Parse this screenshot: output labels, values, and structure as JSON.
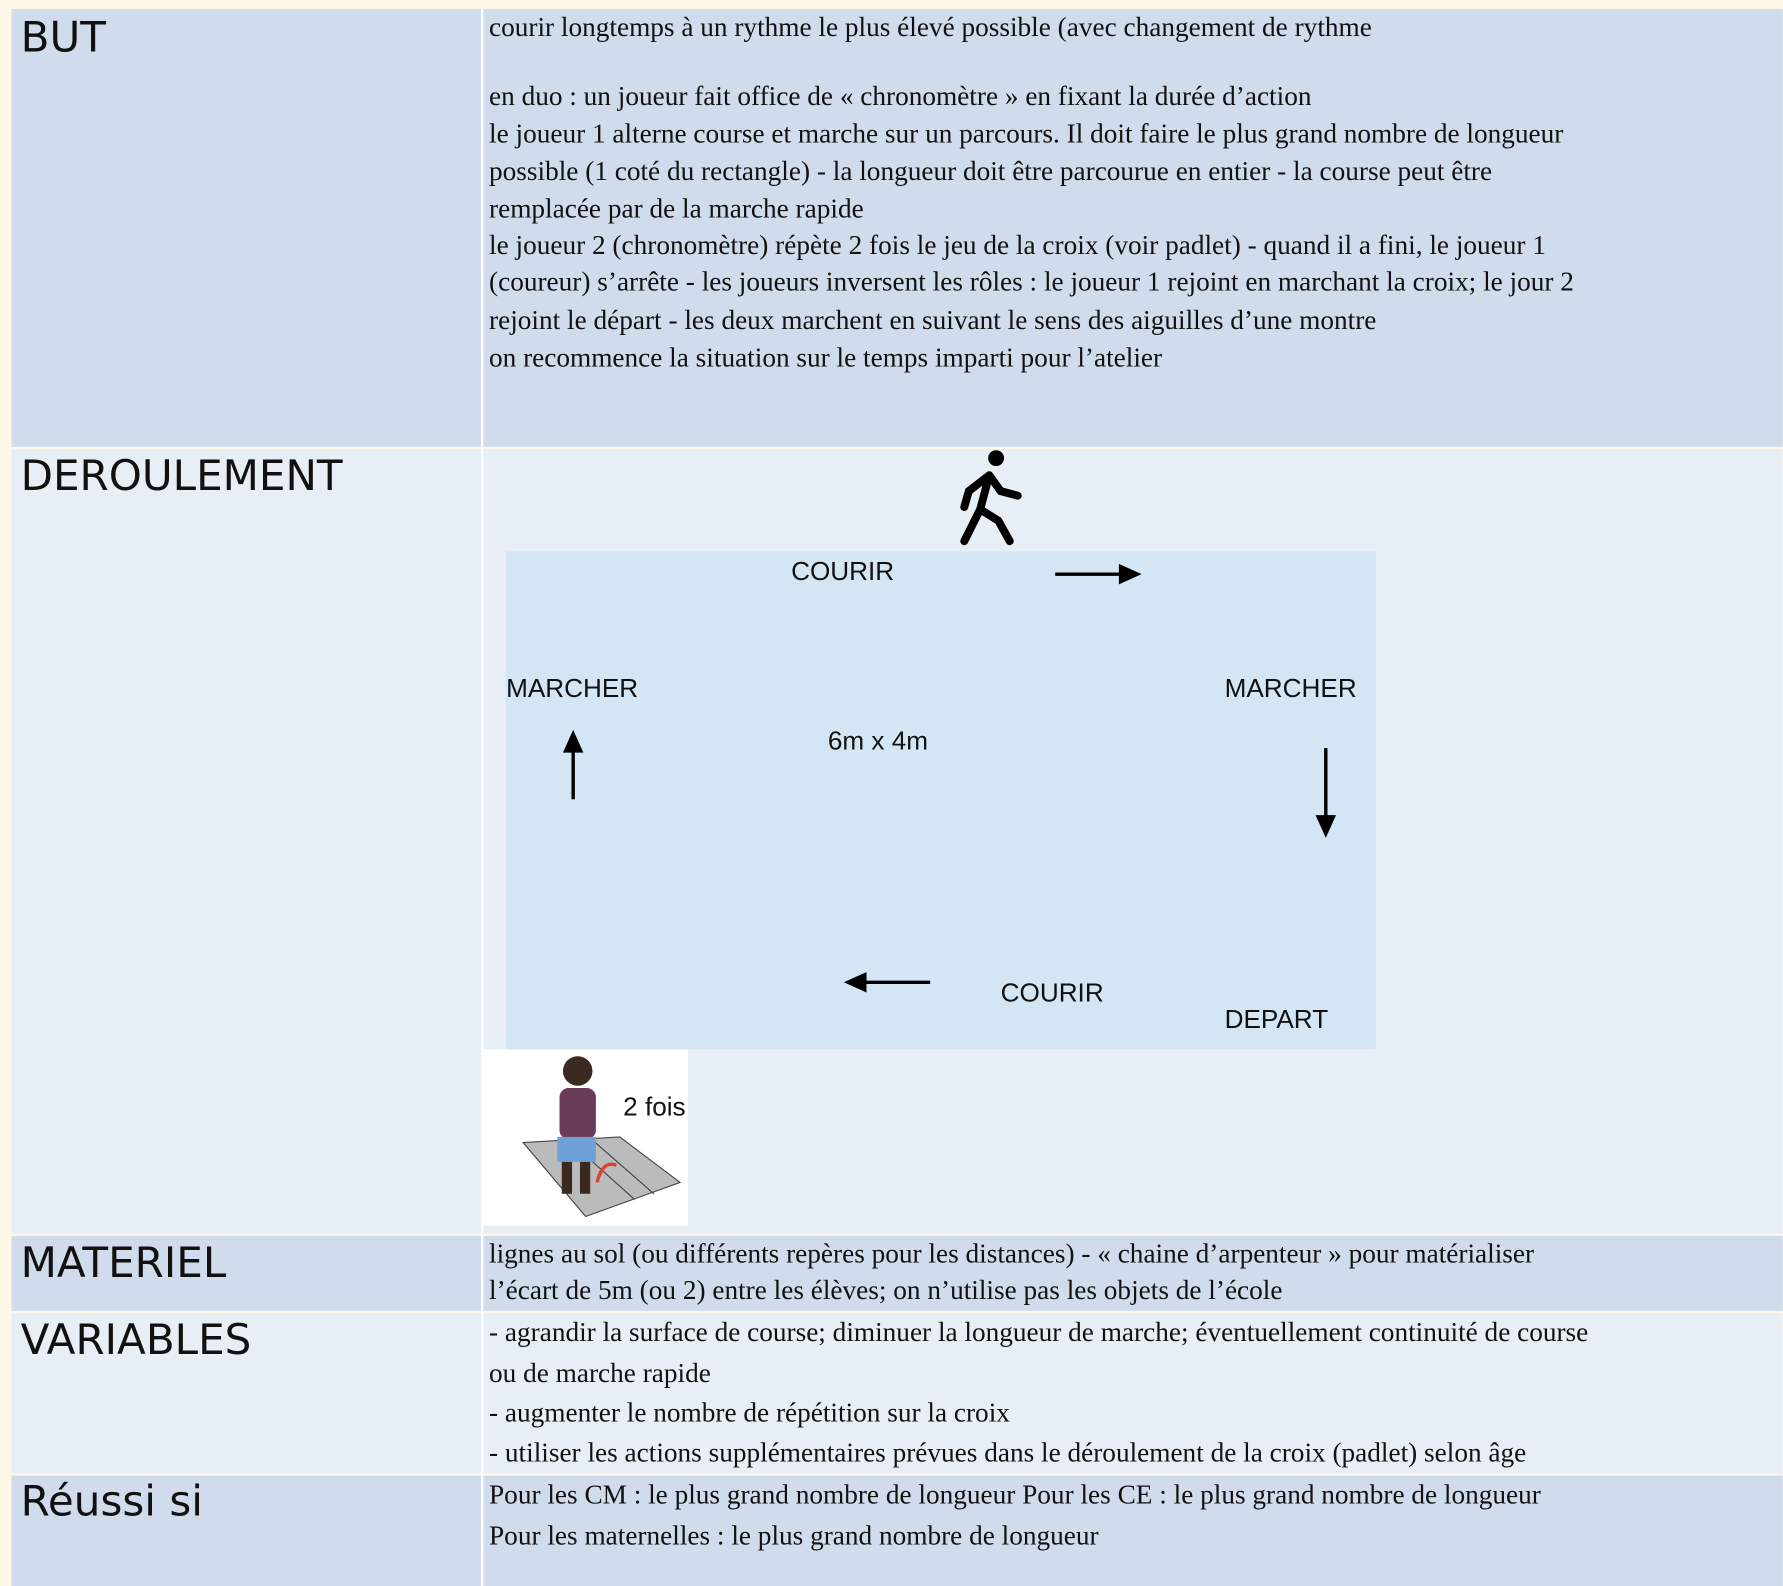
{
  "rows": [
    {
      "label": "BUT",
      "lines": [
        "courir longtemps à un rythme le plus élevé possible (avec changement de rythme",
        "en duo : un joueur fait office de « chronomètre » en fixant la durée d’action",
        "le joueur 1 alterne course et marche sur un parcours. Il doit faire le plus grand nombre de longueur",
        "possible (1 coté du rectangle) - la longueur doit être parcourue en entier - la course peut être",
        "remplacée par de la marche rapide",
        "le joueur 2 (chronomètre) répète 2 fois le jeu de la croix (voir padlet) - quand il a fini, le joueur 1",
        "(coureur) s’arrête - les joueurs inversent les rôles : le joueur 1 rejoint en marchant la croix; le jour 2",
        "rejoint le départ - les deux marchent en suivant le sens des aiguilles d’une montre",
        "on recommence la situation sur le temps imparti pour l’atelier"
      ]
    },
    {
      "label": "DEROULEMENT",
      "diagram": {
        "top": "COURIR",
        "left": "MARCHER",
        "right": "MARCHER",
        "size": "6m x 4m",
        "bottom": "COURIR",
        "start": "DEPART",
        "repeat": "2 fois"
      }
    },
    {
      "label": "MATERIEL",
      "lines": [
        "lignes au sol (ou différents repères pour les distances) - « chaine d’arpenteur » pour matérialiser",
        "l’écart de 5m (ou 2) entre les élèves; on n’utilise pas les objets de l’école"
      ]
    },
    {
      "label": "VARIABLES",
      "lines": [
        "- agrandir la surface de course; diminuer la longueur de marche; éventuellement continuité de course",
        "ou de marche rapide",
        "-  augmenter le nombre de répétition sur la croix",
        "-  utiliser les actions supplémentaires prévues dans le déroulement de la croix (padlet) selon âge"
      ]
    },
    {
      "label": "Réussi si",
      "lines": [
        "Pour les CM : le plus grand nombre de longueur Pour les CE : le plus grand nombre de longueur",
        "Pour les maternelles : le plus grand nombre de longueur"
      ]
    }
  ]
}
